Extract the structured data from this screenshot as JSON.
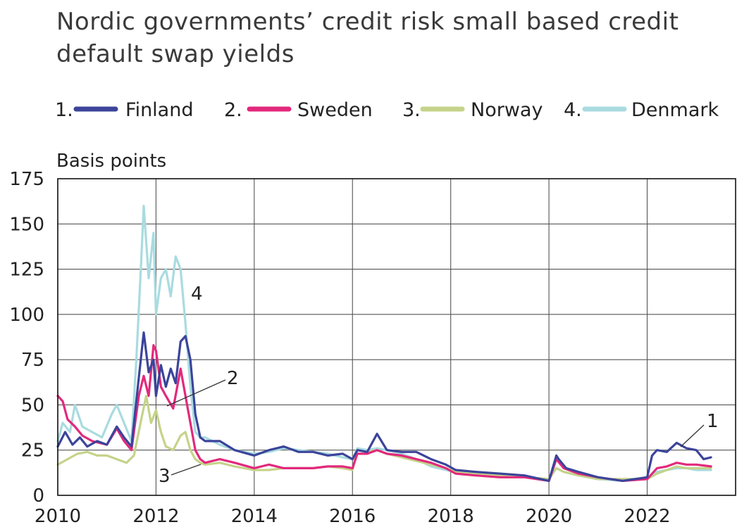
{
  "chart_data": {
    "type": "line",
    "title": "Nordic governments’ credit risk small based credit default swap yields",
    "ylabel": "Basis points",
    "xlabel": "",
    "xlim": [
      2010,
      2023.8
    ],
    "ylim": [
      0,
      175
    ],
    "x_ticks": [
      "2010",
      "2012",
      "2014",
      "2016",
      "2018",
      "2020",
      "2022"
    ],
    "y_ticks": [
      "0",
      "25",
      "50",
      "75",
      "100",
      "125",
      "150",
      "175"
    ],
    "grid": true,
    "legend_position": "top",
    "series": [
      {
        "name": "Finland",
        "legend_number": "1.",
        "label": "1",
        "color": "#3b449a",
        "x": [
          2010.0,
          2010.15,
          2010.3,
          2010.45,
          2010.6,
          2010.8,
          2011.0,
          2011.2,
          2011.35,
          2011.5,
          2011.65,
          2011.75,
          2011.85,
          2011.95,
          2012.0,
          2012.1,
          2012.2,
          2012.3,
          2012.4,
          2012.5,
          2012.6,
          2012.7,
          2012.8,
          2012.9,
          2013.0,
          2013.3,
          2013.6,
          2014.0,
          2014.3,
          2014.6,
          2014.9,
          2015.2,
          2015.5,
          2015.8,
          2016.0,
          2016.1,
          2016.3,
          2016.5,
          2016.7,
          2017.0,
          2017.3,
          2017.6,
          2017.9,
          2018.1,
          2018.5,
          2019.0,
          2019.5,
          2020.0,
          2020.15,
          2020.2,
          2020.35,
          2020.6,
          2021.0,
          2021.5,
          2022.0,
          2022.1,
          2022.2,
          2022.4,
          2022.6,
          2022.8,
          2023.0,
          2023.15,
          2023.3
        ],
        "y": [
          27,
          35,
          28,
          32,
          27,
          30,
          28,
          38,
          32,
          27,
          65,
          90,
          68,
          75,
          55,
          72,
          60,
          70,
          62,
          85,
          88,
          75,
          45,
          32,
          30,
          30,
          25,
          22,
          25,
          27,
          24,
          24,
          22,
          23,
          20,
          25,
          24,
          34,
          25,
          24,
          24,
          20,
          17,
          14,
          13,
          12,
          11,
          8,
          22,
          20,
          15,
          13,
          10,
          8,
          10,
          22,
          25,
          24,
          29,
          26,
          25,
          20,
          21
        ]
      },
      {
        "name": "Sweden",
        "legend_number": "2.",
        "label": "2",
        "color": "#e2297c",
        "x": [
          2010.0,
          2010.1,
          2010.2,
          2010.35,
          2010.5,
          2010.7,
          2011.0,
          2011.2,
          2011.35,
          2011.5,
          2011.65,
          2011.75,
          2011.85,
          2011.95,
          2012.0,
          2012.1,
          2012.2,
          2012.35,
          2012.5,
          2012.6,
          2012.7,
          2012.8,
          2012.9,
          2013.0,
          2013.3,
          2013.6,
          2014.0,
          2014.3,
          2014.6,
          2014.9,
          2015.2,
          2015.5,
          2015.8,
          2016.0,
          2016.1,
          2016.3,
          2016.5,
          2016.7,
          2017.0,
          2017.3,
          2017.6,
          2017.9,
          2018.1,
          2018.5,
          2019.0,
          2019.5,
          2020.0,
          2020.15,
          2020.3,
          2020.6,
          2021.0,
          2021.5,
          2022.0,
          2022.2,
          2022.4,
          2022.6,
          2022.8,
          2023.0,
          2023.3
        ],
        "y": [
          55,
          52,
          42,
          38,
          33,
          30,
          28,
          37,
          30,
          25,
          55,
          66,
          55,
          83,
          80,
          60,
          55,
          48,
          70,
          55,
          40,
          25,
          20,
          18,
          20,
          18,
          15,
          17,
          15,
          15,
          15,
          16,
          16,
          15,
          23,
          23,
          25,
          23,
          22,
          20,
          18,
          15,
          12,
          11,
          10,
          10,
          8,
          20,
          15,
          12,
          10,
          8,
          9,
          15,
          16,
          18,
          17,
          17,
          16
        ]
      },
      {
        "name": "Norway",
        "legend_number": "3.",
        "label": "3",
        "color": "#c5d38a",
        "x": [
          2010.0,
          2010.2,
          2010.4,
          2010.6,
          2010.8,
          2011.0,
          2011.2,
          2011.4,
          2011.55,
          2011.7,
          2011.8,
          2011.9,
          2012.0,
          2012.1,
          2012.2,
          2012.35,
          2012.5,
          2012.6,
          2012.7,
          2012.8,
          2012.9,
          2013.0,
          2013.3,
          2013.6,
          2014.0,
          2014.3,
          2014.6,
          2014.9,
          2015.2,
          2015.5,
          2015.8,
          2016.0,
          2016.1,
          2016.3,
          2016.5,
          2016.7,
          2017.0,
          2017.3,
          2017.6,
          2017.9,
          2018.1,
          2018.5,
          2019.0,
          2019.5,
          2020.0,
          2020.15,
          2020.3,
          2020.6,
          2021.0,
          2021.5,
          2022.0,
          2022.2,
          2022.4,
          2022.6,
          2022.8,
          2023.0,
          2023.3
        ],
        "y": [
          17,
          20,
          23,
          24,
          22,
          22,
          20,
          18,
          22,
          42,
          55,
          40,
          47,
          35,
          27,
          25,
          33,
          35,
          25,
          20,
          18,
          17,
          18,
          16,
          14,
          14,
          15,
          15,
          15,
          16,
          15,
          14,
          25,
          24,
          25,
          23,
          21,
          19,
          17,
          15,
          13,
          12,
          11,
          10,
          9,
          15,
          13,
          11,
          9,
          9,
          9,
          12,
          14,
          16,
          15,
          15,
          15
        ]
      },
      {
        "name": "Denmark",
        "legend_number": "4.",
        "label": "4",
        "color": "#a9dbe0",
        "x": [
          2010.0,
          2010.1,
          2010.25,
          2010.35,
          2010.5,
          2010.7,
          2010.9,
          2011.1,
          2011.2,
          2011.35,
          2011.5,
          2011.6,
          2011.7,
          2011.75,
          2011.85,
          2011.95,
          2012.0,
          2012.1,
          2012.2,
          2012.3,
          2012.4,
          2012.5,
          2012.6,
          2012.7,
          2012.8,
          2012.9,
          2013.0,
          2013.3,
          2013.6,
          2014.0,
          2014.3,
          2014.6,
          2014.9,
          2015.2,
          2015.5,
          2015.8,
          2016.0,
          2016.1,
          2016.3,
          2016.5,
          2016.7,
          2017.0,
          2017.3,
          2017.6,
          2017.9,
          2018.1,
          2018.5,
          2019.0,
          2019.5,
          2020.0,
          2020.15,
          2020.3,
          2020.6,
          2021.0,
          2021.5,
          2022.0,
          2022.2,
          2022.4,
          2022.6,
          2022.8,
          2023.0,
          2023.3
        ],
        "y": [
          30,
          40,
          35,
          50,
          38,
          35,
          32,
          45,
          50,
          40,
          30,
          75,
          130,
          160,
          120,
          145,
          100,
          120,
          125,
          110,
          132,
          125,
          95,
          60,
          35,
          32,
          32,
          28,
          25,
          23,
          24,
          26,
          25,
          24,
          23,
          21,
          20,
          26,
          25,
          26,
          25,
          23,
          20,
          16,
          14,
          13,
          12,
          11,
          10,
          9,
          15,
          13,
          11,
          9,
          8,
          9,
          13,
          14,
          15,
          15,
          14,
          14
        ]
      }
    ]
  }
}
